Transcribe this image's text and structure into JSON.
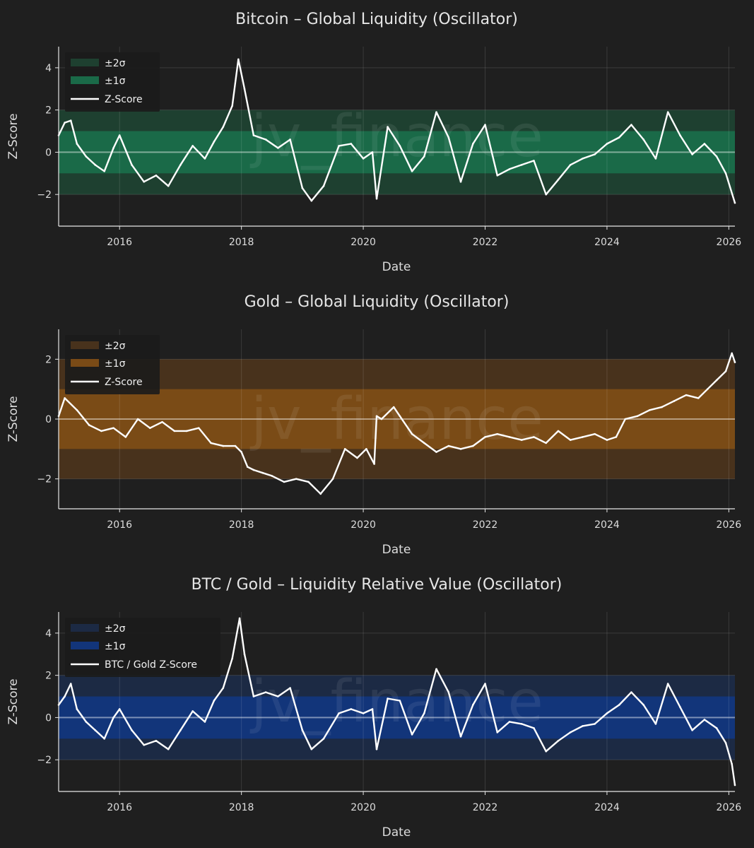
{
  "watermark": "jv_finance",
  "chart_data": [
    {
      "type": "line",
      "title": "Bitcoin – Global Liquidity (Oscillator)",
      "xlabel": "Date",
      "ylabel": "Z-Score",
      "xlim": [
        2015.0,
        2026.1
      ],
      "ylim": [
        -3.5,
        5.0
      ],
      "xticks": [
        2016,
        2018,
        2020,
        2022,
        2024,
        2026
      ],
      "xtick_labels": [
        "2016",
        "2018",
        "2020",
        "2022",
        "2024",
        "2026"
      ],
      "yticks": [
        -2,
        0,
        2,
        4
      ],
      "ytick_labels": [
        "−2",
        "0",
        "2",
        "4"
      ],
      "bands": [
        {
          "name": "±2σ",
          "range": [
            -2,
            2
          ],
          "color": "#1e4030"
        },
        {
          "name": "±1σ",
          "range": [
            -1,
            1
          ],
          "color": "#1a6a48"
        }
      ],
      "legend": "top-left",
      "grid": true,
      "series": [
        {
          "name": "Z-Score",
          "color": "#ffffff",
          "x": [
            2015.0,
            2015.1,
            2015.2,
            2015.3,
            2015.45,
            2015.6,
            2015.75,
            2015.9,
            2016.0,
            2016.2,
            2016.4,
            2016.6,
            2016.8,
            2017.0,
            2017.2,
            2017.4,
            2017.55,
            2017.7,
            2017.85,
            2017.95,
            2018.05,
            2018.2,
            2018.4,
            2018.6,
            2018.8,
            2019.0,
            2019.15,
            2019.35,
            2019.6,
            2019.8,
            2020.0,
            2020.15,
            2020.22,
            2020.4,
            2020.6,
            2020.8,
            2021.0,
            2021.2,
            2021.4,
            2021.6,
            2021.8,
            2022.0,
            2022.2,
            2022.4,
            2022.6,
            2022.8,
            2023.0,
            2023.2,
            2023.4,
            2023.6,
            2023.8,
            2024.0,
            2024.2,
            2024.4,
            2024.6,
            2024.8,
            2025.0,
            2025.2,
            2025.4,
            2025.6,
            2025.8,
            2025.95,
            2026.1
          ],
          "values": [
            0.8,
            1.4,
            1.5,
            0.4,
            -0.2,
            -0.6,
            -0.9,
            0.2,
            0.8,
            -0.6,
            -1.4,
            -1.1,
            -1.6,
            -0.6,
            0.3,
            -0.3,
            0.5,
            1.2,
            2.2,
            4.4,
            3.0,
            0.8,
            0.6,
            0.2,
            0.6,
            -1.7,
            -2.3,
            -1.6,
            0.3,
            0.4,
            -0.3,
            0.0,
            -2.2,
            1.2,
            0.3,
            -0.9,
            -0.2,
            1.9,
            0.7,
            -1.4,
            0.4,
            1.3,
            -1.1,
            -0.8,
            -0.6,
            -0.4,
            -2.0,
            -1.3,
            -0.6,
            -0.3,
            -0.1,
            0.4,
            0.7,
            1.3,
            0.6,
            -0.3,
            1.9,
            0.8,
            -0.1,
            0.4,
            -0.2,
            -1.0,
            -2.4
          ]
        }
      ]
    },
    {
      "type": "line",
      "title": "Gold – Global Liquidity (Oscillator)",
      "xlabel": "Date",
      "ylabel": "Z-Score",
      "xlim": [
        2015.0,
        2026.1
      ],
      "ylim": [
        -3.0,
        3.0
      ],
      "xticks": [
        2016,
        2018,
        2020,
        2022,
        2024,
        2026
      ],
      "xtick_labels": [
        "2016",
        "2018",
        "2020",
        "2022",
        "2024",
        "2026"
      ],
      "yticks": [
        -2,
        0,
        2
      ],
      "ytick_labels": [
        "−2",
        "0",
        "2"
      ],
      "bands": [
        {
          "name": "±2σ",
          "range": [
            -2,
            2
          ],
          "color": "#48321c"
        },
        {
          "name": "±1σ",
          "range": [
            -1,
            1
          ],
          "color": "#7a4b16"
        }
      ],
      "legend": "top-left",
      "grid": true,
      "series": [
        {
          "name": "Z-Score",
          "color": "#ffffff",
          "x": [
            2015.0,
            2015.1,
            2015.3,
            2015.5,
            2015.7,
            2015.9,
            2016.1,
            2016.3,
            2016.5,
            2016.7,
            2016.9,
            2017.1,
            2017.3,
            2017.5,
            2017.7,
            2017.9,
            2018.0,
            2018.1,
            2018.2,
            2018.35,
            2018.5,
            2018.7,
            2018.9,
            2019.1,
            2019.3,
            2019.5,
            2019.7,
            2019.9,
            2020.05,
            2020.18,
            2020.22,
            2020.3,
            2020.5,
            2020.6,
            2020.8,
            2021.0,
            2021.2,
            2021.4,
            2021.6,
            2021.8,
            2022.0,
            2022.2,
            2022.4,
            2022.6,
            2022.8,
            2023.0,
            2023.2,
            2023.4,
            2023.6,
            2023.8,
            2024.0,
            2024.15,
            2024.3,
            2024.5,
            2024.7,
            2024.9,
            2025.1,
            2025.3,
            2025.5,
            2025.65,
            2025.8,
            2025.95,
            2026.05,
            2026.1
          ],
          "values": [
            0.1,
            0.7,
            0.3,
            -0.2,
            -0.4,
            -0.3,
            -0.6,
            0.0,
            -0.3,
            -0.1,
            -0.4,
            -0.4,
            -0.3,
            -0.8,
            -0.9,
            -0.9,
            -1.1,
            -1.6,
            -1.7,
            -1.8,
            -1.9,
            -2.1,
            -2.0,
            -2.1,
            -2.5,
            -2.0,
            -1.0,
            -1.3,
            -1.0,
            -1.5,
            0.1,
            0.0,
            0.4,
            0.1,
            -0.5,
            -0.8,
            -1.1,
            -0.9,
            -1.0,
            -0.9,
            -0.6,
            -0.5,
            -0.6,
            -0.7,
            -0.6,
            -0.8,
            -0.4,
            -0.7,
            -0.6,
            -0.5,
            -0.7,
            -0.6,
            0.0,
            0.1,
            0.3,
            0.4,
            0.6,
            0.8,
            0.7,
            1.0,
            1.3,
            1.6,
            2.2,
            1.9
          ]
        }
      ]
    },
    {
      "type": "line",
      "title": "BTC / Gold – Liquidity Relative Value (Oscillator)",
      "xlabel": "Date",
      "ylabel": "Z-Score",
      "xlim": [
        2015.0,
        2026.1
      ],
      "ylim": [
        -3.5,
        5.0
      ],
      "xticks": [
        2016,
        2018,
        2020,
        2022,
        2024,
        2026
      ],
      "xtick_labels": [
        "2016",
        "2018",
        "2020",
        "2022",
        "2024",
        "2026"
      ],
      "yticks": [
        -2,
        0,
        2,
        4
      ],
      "ytick_labels": [
        "−2",
        "0",
        "2",
        "4"
      ],
      "bands": [
        {
          "name": "±2σ",
          "range": [
            -2,
            2
          ],
          "color": "#1c2a44"
        },
        {
          "name": "±1σ",
          "range": [
            -1,
            1
          ],
          "color": "#12357a"
        }
      ],
      "legend": "top-left",
      "grid": true,
      "series": [
        {
          "name": "BTC / Gold Z-Score",
          "color": "#ffffff",
          "x": [
            2015.0,
            2015.1,
            2015.2,
            2015.3,
            2015.45,
            2015.6,
            2015.75,
            2015.9,
            2016.0,
            2016.2,
            2016.4,
            2016.6,
            2016.8,
            2017.0,
            2017.2,
            2017.4,
            2017.55,
            2017.7,
            2017.85,
            2017.97,
            2018.05,
            2018.2,
            2018.4,
            2018.6,
            2018.8,
            2019.0,
            2019.15,
            2019.35,
            2019.6,
            2019.8,
            2020.0,
            2020.15,
            2020.22,
            2020.4,
            2020.6,
            2020.8,
            2021.0,
            2021.2,
            2021.4,
            2021.6,
            2021.8,
            2022.0,
            2022.2,
            2022.4,
            2022.6,
            2022.8,
            2023.0,
            2023.2,
            2023.4,
            2023.6,
            2023.8,
            2024.0,
            2024.2,
            2024.4,
            2024.6,
            2024.8,
            2025.0,
            2025.2,
            2025.4,
            2025.6,
            2025.8,
            2025.95,
            2026.05,
            2026.1
          ],
          "values": [
            0.6,
            1.0,
            1.6,
            0.4,
            -0.2,
            -0.6,
            -1.0,
            0.0,
            0.4,
            -0.6,
            -1.3,
            -1.1,
            -1.5,
            -0.6,
            0.3,
            -0.2,
            0.8,
            1.4,
            2.8,
            4.7,
            3.0,
            1.0,
            1.2,
            1.0,
            1.4,
            -0.6,
            -1.5,
            -1.0,
            0.2,
            0.4,
            0.2,
            0.4,
            -1.5,
            0.9,
            0.8,
            -0.8,
            0.2,
            2.3,
            1.2,
            -0.9,
            0.6,
            1.6,
            -0.7,
            -0.2,
            -0.3,
            -0.5,
            -1.6,
            -1.1,
            -0.7,
            -0.4,
            -0.3,
            0.2,
            0.6,
            1.2,
            0.6,
            -0.3,
            1.6,
            0.5,
            -0.6,
            -0.1,
            -0.5,
            -1.2,
            -2.2,
            -3.2
          ]
        }
      ]
    }
  ]
}
